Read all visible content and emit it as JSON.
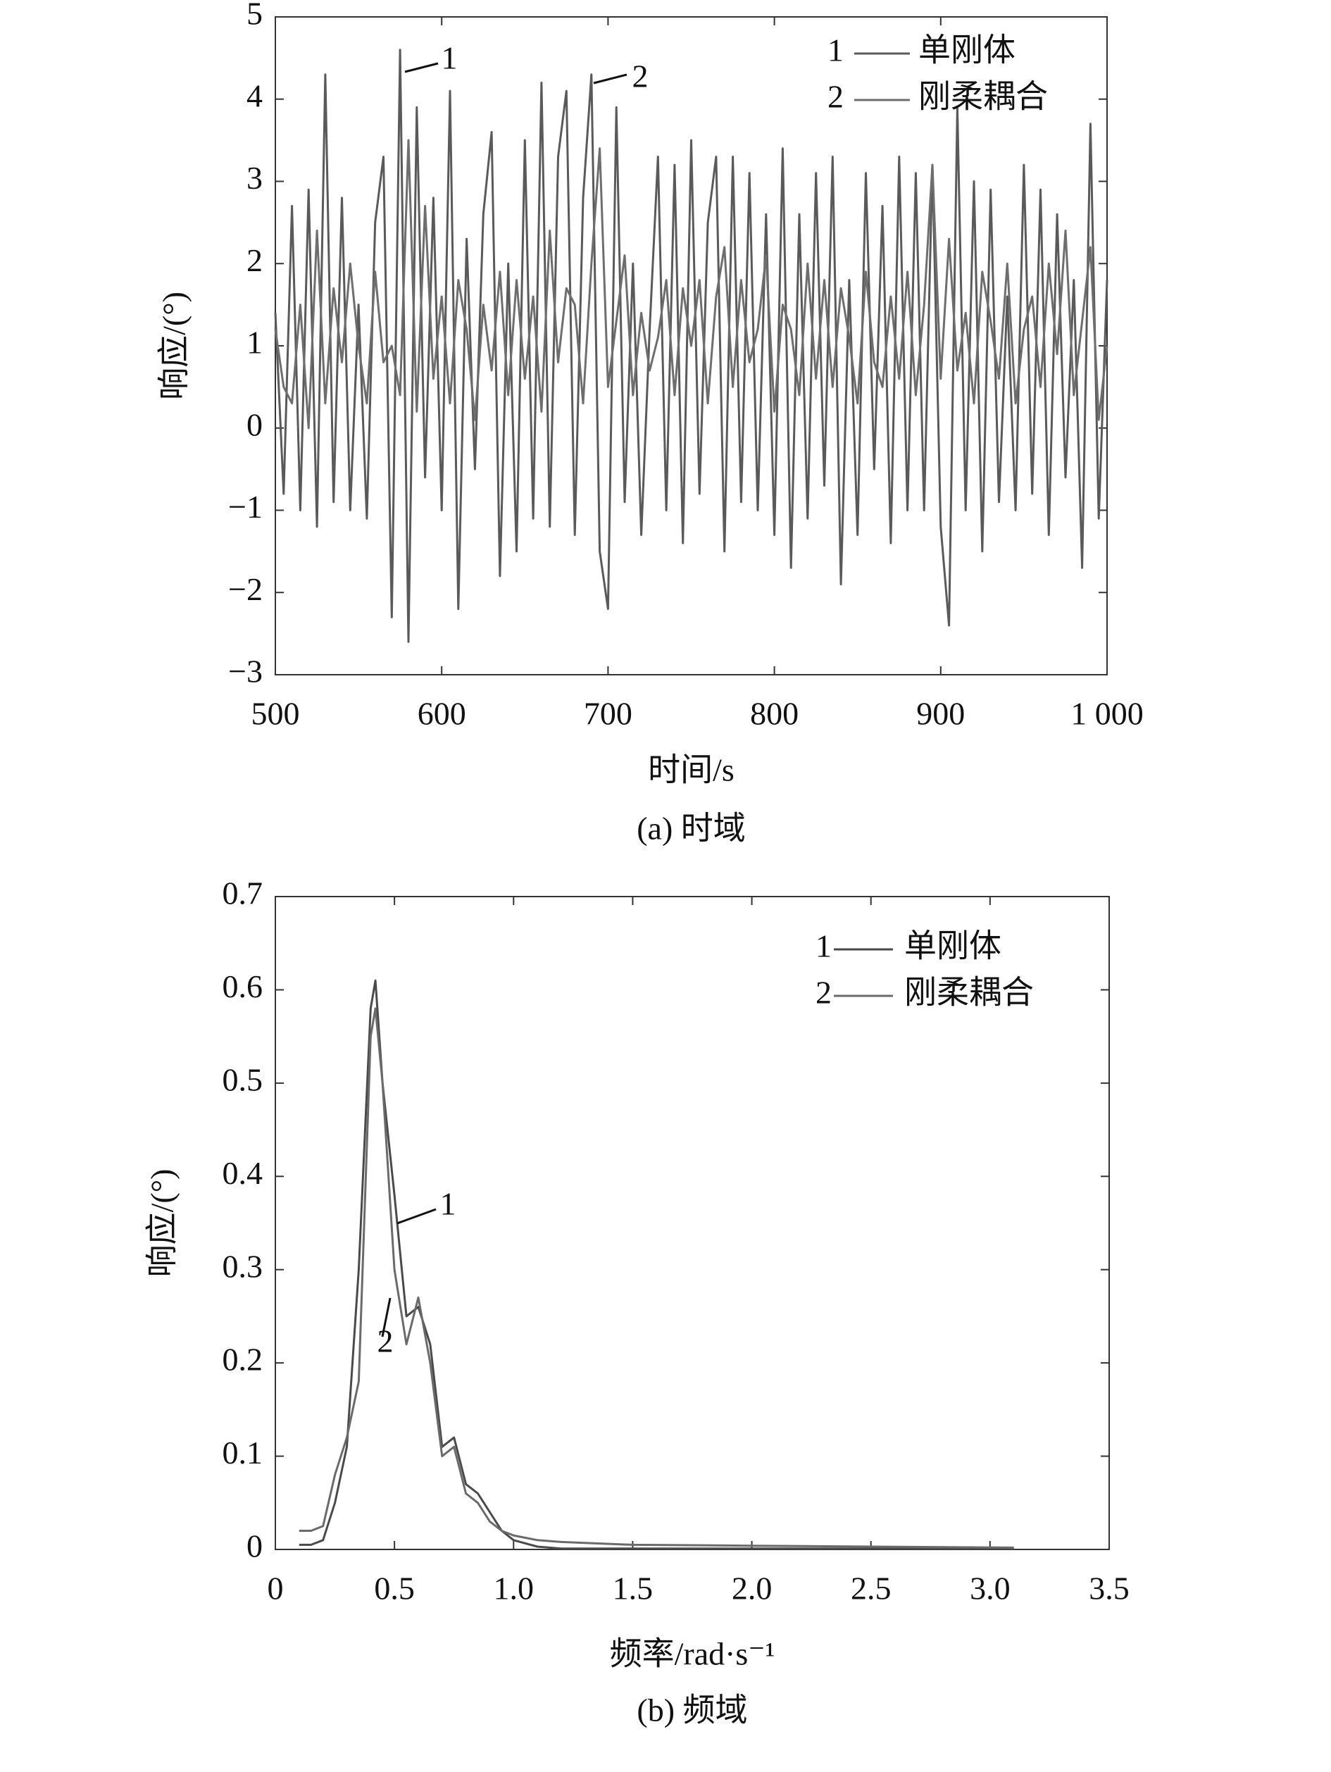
{
  "chart_data": [
    {
      "type": "line",
      "caption": "(a) 时域",
      "xlabel": "时间/s",
      "ylabel": "响应/(°)",
      "xlim": [
        500,
        1000
      ],
      "xticks": [
        500,
        600,
        700,
        800,
        900,
        {
          "value": 1000,
          "label": "1 000"
        }
      ],
      "ylim": [
        -3,
        5
      ],
      "yticks": [
        {
          "value": -3,
          "label": "−3"
        },
        {
          "value": -2,
          "label": "−2"
        },
        {
          "value": -1,
          "label": "−1"
        },
        0,
        1,
        2,
        3,
        4,
        5
      ],
      "legend": "upper right",
      "annotations": [
        "1",
        "2"
      ],
      "x": [
        500,
        505,
        510,
        515,
        520,
        525,
        530,
        535,
        540,
        545,
        550,
        555,
        560,
        565,
        570,
        575,
        580,
        585,
        590,
        595,
        600,
        605,
        610,
        615,
        620,
        625,
        630,
        635,
        640,
        645,
        650,
        655,
        660,
        665,
        670,
        675,
        680,
        685,
        690,
        695,
        700,
        705,
        710,
        715,
        720,
        725,
        730,
        735,
        740,
        745,
        750,
        755,
        760,
        765,
        770,
        775,
        780,
        785,
        790,
        795,
        800,
        805,
        810,
        815,
        820,
        825,
        830,
        835,
        840,
        845,
        850,
        855,
        860,
        865,
        870,
        875,
        880,
        885,
        890,
        895,
        900,
        905,
        910,
        915,
        920,
        925,
        930,
        935,
        940,
        945,
        950,
        955,
        960,
        965,
        970,
        975,
        980,
        985,
        990,
        995,
        1000
      ],
      "series": [
        {
          "name": "单刚体",
          "number": "1",
          "color": "#5a5a5a",
          "values": [
            1.4,
            -0.8,
            2.7,
            -1.0,
            2.9,
            -1.2,
            4.3,
            -0.9,
            2.8,
            -1.0,
            1.5,
            -1.1,
            2.5,
            3.3,
            -2.3,
            4.6,
            -2.6,
            3.9,
            -0.6,
            2.8,
            -1.0,
            4.1,
            -2.2,
            2.3,
            -0.5,
            2.6,
            3.6,
            -1.8,
            2.0,
            -1.5,
            3.5,
            -1.1,
            4.2,
            -1.2,
            3.3,
            4.1,
            -1.3,
            2.8,
            4.3,
            -1.5,
            -2.2,
            3.9,
            -0.9,
            2.0,
            -1.3,
            1.2,
            3.3,
            -1.0,
            3.2,
            -1.4,
            3.5,
            -0.8,
            2.5,
            3.3,
            -1.5,
            3.3,
            -0.9,
            3.1,
            -1.0,
            2.6,
            -1.3,
            3.4,
            -1.7,
            2.6,
            -1.1,
            3.1,
            -0.7,
            3.3,
            -1.9,
            1.8,
            -1.3,
            3.1,
            -0.5,
            2.7,
            -1.4,
            3.3,
            -1.0,
            3.1,
            -1.0,
            3.2,
            -1.2,
            -2.4,
            3.9,
            -1.0,
            3.0,
            -1.5,
            2.9,
            -0.9,
            1.6,
            -1.0,
            3.2,
            -0.8,
            2.9,
            -1.3,
            2.6,
            -0.6,
            1.8,
            -1.7,
            3.7,
            -1.1,
            1.8
          ]
        },
        {
          "name": "刚柔耦合",
          "number": "2",
          "color": "#6e6e6e",
          "values": [
            1.2,
            0.5,
            0.3,
            1.5,
            0.0,
            2.4,
            0.3,
            1.7,
            0.8,
            2.0,
            1.0,
            0.3,
            1.9,
            0.8,
            1.0,
            0.4,
            3.5,
            0.2,
            2.7,
            0.6,
            1.6,
            0.3,
            1.8,
            1.2,
            0.1,
            1.5,
            0.7,
            1.9,
            0.4,
            1.8,
            0.6,
            1.6,
            0.2,
            2.4,
            0.8,
            1.7,
            1.5,
            0.3,
            2.0,
            3.4,
            0.5,
            1.3,
            2.1,
            0.4,
            1.4,
            0.7,
            1.1,
            1.8,
            0.4,
            1.7,
            1.0,
            1.8,
            0.3,
            1.6,
            2.2,
            0.5,
            1.8,
            0.8,
            1.2,
            2.1,
            0.2,
            1.5,
            1.2,
            0.4,
            2.0,
            0.6,
            1.8,
            0.5,
            1.7,
            1.1,
            0.3,
            1.9,
            0.8,
            0.5,
            1.6,
            0.6,
            1.9,
            0.4,
            1.5,
            3.2,
            0.6,
            2.3,
            0.7,
            1.4,
            0.3,
            1.9,
            1.3,
            0.6,
            2.0,
            0.3,
            1.2,
            1.6,
            0.5,
            2.0,
            0.9,
            2.4,
            0.4,
            1.3,
            2.2,
            0.1,
            1.0
          ]
        }
      ]
    },
    {
      "type": "line",
      "caption": "(b) 频域",
      "xlabel": "频率/rad·s⁻¹",
      "ylabel": "响应/(°)",
      "xlim": [
        0,
        3.5
      ],
      "xticks": [
        0,
        0.5,
        {
          "value": 1,
          "label": "1.0"
        },
        1.5,
        {
          "value": 2,
          "label": "2.0"
        },
        2.5,
        {
          "value": 3,
          "label": "3.0"
        },
        3.5
      ],
      "ylim": [
        0,
        0.7
      ],
      "yticks": [
        0,
        0.1,
        0.2,
        0.3,
        0.4,
        0.5,
        0.6,
        0.7
      ],
      "legend": "upper right",
      "annotations": [
        "1",
        "2"
      ],
      "x": [
        0.1,
        0.15,
        0.2,
        0.25,
        0.3,
        0.35,
        0.4,
        0.42,
        0.45,
        0.5,
        0.55,
        0.6,
        0.65,
        0.7,
        0.75,
        0.8,
        0.85,
        0.9,
        0.95,
        1.0,
        1.1,
        1.2,
        1.5,
        2.0,
        2.5,
        3.1
      ],
      "series": [
        {
          "name": "单刚体",
          "number": "1",
          "color": "#4a4a4a",
          "values": [
            0.005,
            0.005,
            0.01,
            0.05,
            0.11,
            0.3,
            0.58,
            0.61,
            0.5,
            0.38,
            0.25,
            0.26,
            0.22,
            0.11,
            0.12,
            0.07,
            0.06,
            0.04,
            0.02,
            0.01,
            0.003,
            0.001,
            0.001,
            0.001,
            0.001,
            0.001
          ]
        },
        {
          "name": "刚柔耦合",
          "number": "2",
          "color": "#6a6a6a",
          "values": [
            0.02,
            0.02,
            0.025,
            0.08,
            0.12,
            0.18,
            0.55,
            0.58,
            0.5,
            0.3,
            0.22,
            0.27,
            0.2,
            0.1,
            0.11,
            0.06,
            0.05,
            0.03,
            0.02,
            0.015,
            0.01,
            0.008,
            0.005,
            0.004,
            0.003,
            0.002
          ]
        }
      ]
    }
  ]
}
